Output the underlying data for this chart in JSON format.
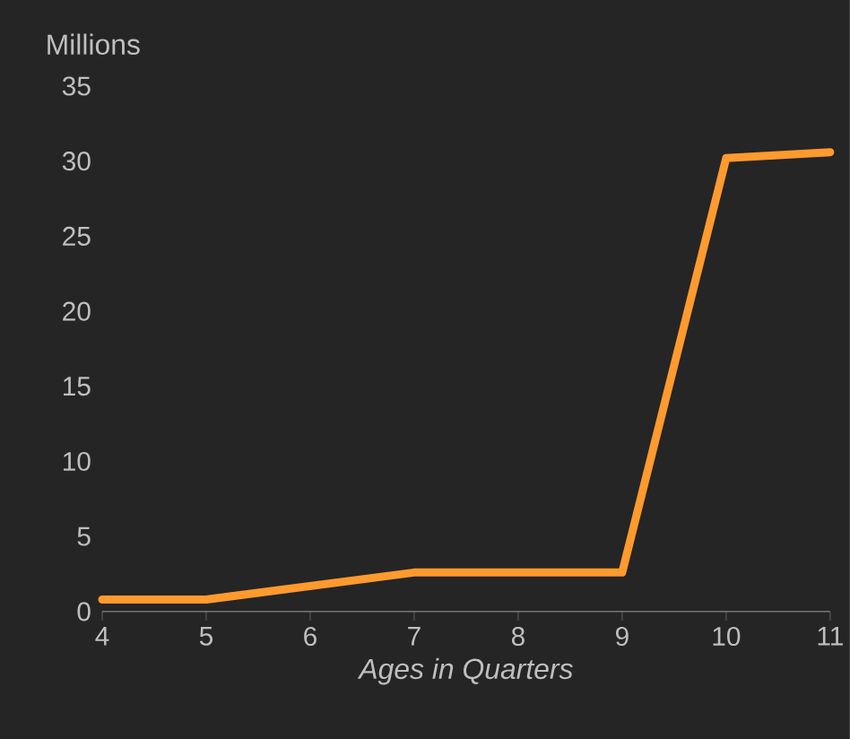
{
  "chart_data": {
    "type": "line",
    "ylabel": "Millions",
    "xlabel": "Ages in Quarters",
    "x": [
      4,
      5,
      7,
      9,
      10,
      11
    ],
    "values": [
      0.8,
      0.8,
      2.6,
      2.6,
      30.2,
      30.6
    ],
    "color": "#ff9a2e",
    "marker": "none",
    "line_style": "solid",
    "xlim": [
      4,
      11
    ],
    "ylim": [
      0,
      35
    ],
    "xticks": [
      4,
      5,
      6,
      7,
      8,
      9,
      10,
      11
    ],
    "yticks": [
      0,
      5,
      10,
      15,
      20,
      25,
      30,
      35
    ]
  }
}
